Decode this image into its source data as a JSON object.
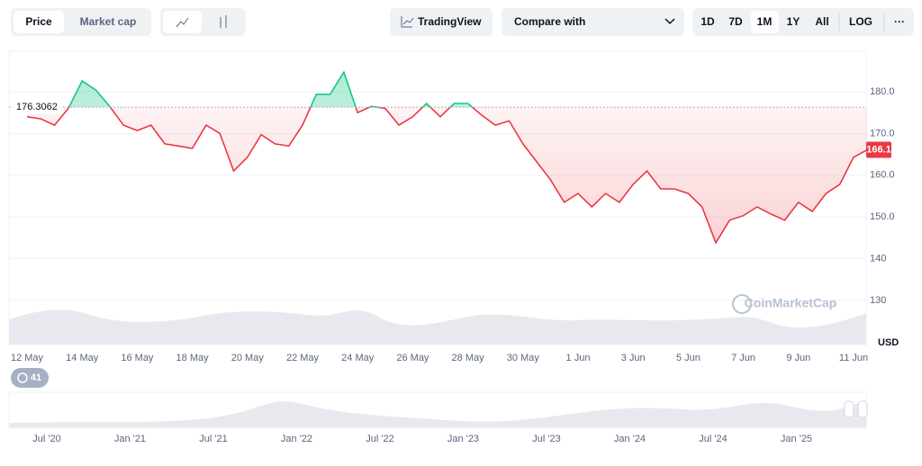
{
  "toolbar": {
    "tabs": [
      "Price",
      "Market cap"
    ],
    "tradingview": "TradingView",
    "compare": "Compare with",
    "ranges": [
      "1D",
      "7D",
      "1M",
      "1Y",
      "All",
      "LOG"
    ],
    "more": "···"
  },
  "badge": "41",
  "watermark": "CoinMarketCap",
  "chart_data": {
    "type": "line",
    "categories": [
      "12 May",
      null,
      null,
      null,
      "14 May",
      null,
      null,
      null,
      "16 May",
      null,
      null,
      null,
      "18 May",
      null,
      null,
      null,
      "20 May",
      null,
      null,
      null,
      "22 May",
      null,
      null,
      null,
      "24 May",
      null,
      null,
      null,
      "26 May",
      null,
      null,
      null,
      "28 May",
      null,
      null,
      null,
      "30 May",
      null,
      null,
      null,
      "1 Jun",
      null,
      null,
      null,
      "3 Jun",
      null,
      null,
      null,
      "5 Jun",
      null,
      null,
      null,
      "7 Jun",
      null,
      null,
      null,
      "9 Jun",
      null,
      null,
      null,
      "11 Jun",
      null
    ],
    "values": [
      174,
      173.5,
      172,
      176,
      182.6,
      180.4,
      176.5,
      172,
      170.7,
      172,
      167.5,
      167,
      166.4,
      172,
      170,
      161,
      164.3,
      169.7,
      167.5,
      167,
      172,
      179.4,
      179.4,
      184.7,
      175,
      176.5,
      176,
      172,
      174,
      177.2,
      174,
      177.2,
      177.2,
      174.4,
      172,
      173,
      167.5,
      163.2,
      158.9,
      153.5,
      155.6,
      152.4,
      155.6,
      153.5,
      157.8,
      161,
      156.7,
      156.7,
      155.6,
      152.4,
      143.8,
      149.2,
      150.3,
      152.4,
      150.7,
      149.2,
      153.5,
      151.3,
      155.6,
      157.8,
      164.3,
      166.1
    ],
    "reference_line": {
      "value": 176.3062,
      "label": "176.3062"
    },
    "up_color": "#16c784",
    "down_color": "#ea3943",
    "ylabel": "USD",
    "ylim": [
      119.4,
      189.7
    ],
    "yticks": [
      {
        "value": 180,
        "label": "180.0"
      },
      {
        "value": 170,
        "label": "170.0"
      },
      {
        "value": 160,
        "label": "160.0"
      },
      {
        "value": 150,
        "label": "150.0"
      },
      140,
      130
    ],
    "grid": true
  },
  "navigator": {
    "labels": [
      "Jul '20",
      "Jan '21",
      "Jul '21",
      "Jan '22",
      "Jul '22",
      "Jan '23",
      "Jul '23",
      "Jan '24",
      "Jul '24",
      "Jan '25"
    ]
  }
}
